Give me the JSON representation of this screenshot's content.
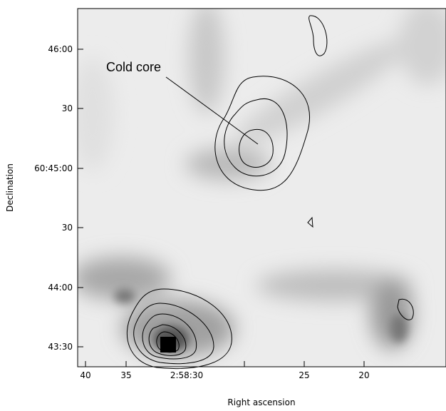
{
  "figure": {
    "annotation": "Cold core",
    "x_axis": {
      "label": "Right ascension",
      "tick_labels": [
        "40",
        "35",
        "2:58:30",
        "25",
        "20"
      ]
    },
    "y_axis": {
      "label": "Declination",
      "tick_labels": [
        "46:00",
        "30",
        "60:45:00",
        "30",
        "44:00",
        "43:30"
      ]
    }
  }
}
